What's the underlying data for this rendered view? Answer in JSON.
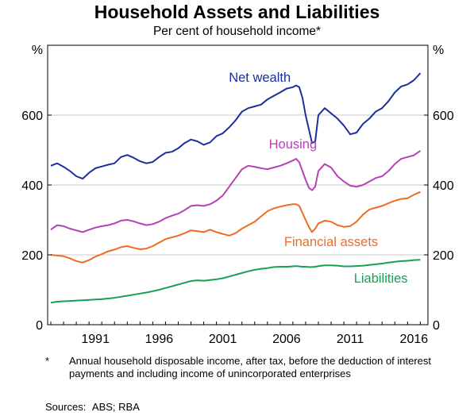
{
  "chart_data": {
    "type": "line",
    "title": "Household Assets and Liabilities",
    "subtitle": "Per cent of household income*",
    "y_unit_left": "%",
    "y_unit_right": "%",
    "ylim": [
      0,
      800
    ],
    "yticks": [
      0,
      200,
      400,
      600
    ],
    "xlim": [
      1987.75,
      2017.6
    ],
    "xticks": [
      1991,
      1996,
      2001,
      2006,
      2011,
      2016
    ],
    "grid": true,
    "series": [
      {
        "name": "Net wealth",
        "color": "#1c2f9c",
        "x": [
          1988.0,
          1988.5,
          1989.0,
          1989.5,
          1990.0,
          1990.5,
          1991.0,
          1991.5,
          1992.0,
          1992.5,
          1993.0,
          1993.5,
          1994.0,
          1994.5,
          1995.0,
          1995.5,
          1996.0,
          1996.5,
          1997.0,
          1997.5,
          1998.0,
          1998.5,
          1999.0,
          1999.5,
          2000.0,
          2000.5,
          2001.0,
          2001.5,
          2002.0,
          2002.5,
          2003.0,
          2003.5,
          2004.0,
          2004.5,
          2005.0,
          2005.5,
          2006.0,
          2006.5,
          2007.0,
          2007.25,
          2007.5,
          2007.75,
          2008.0,
          2008.25,
          2008.5,
          2008.75,
          2009.0,
          2009.5,
          2010.0,
          2010.5,
          2011.0,
          2011.5,
          2012.0,
          2012.5,
          2013.0,
          2013.5,
          2014.0,
          2014.5,
          2015.0,
          2015.5,
          2016.0,
          2016.5,
          2017.0
        ],
        "values": [
          455,
          462,
          452,
          440,
          425,
          418,
          435,
          448,
          453,
          458,
          462,
          480,
          486,
          478,
          468,
          462,
          466,
          480,
          492,
          495,
          505,
          520,
          530,
          525,
          515,
          522,
          540,
          548,
          565,
          585,
          610,
          620,
          625,
          630,
          645,
          655,
          665,
          676,
          680,
          685,
          680,
          650,
          600,
          560,
          520,
          525,
          600,
          620,
          605,
          590,
          570,
          545,
          550,
          575,
          590,
          610,
          620,
          640,
          665,
          682,
          688,
          700,
          720
        ]
      },
      {
        "name": "Housing",
        "color": "#b542b5",
        "x": [
          1988.0,
          1988.5,
          1989.0,
          1989.5,
          1990.0,
          1990.5,
          1991.0,
          1991.5,
          1992.0,
          1992.5,
          1993.0,
          1993.5,
          1994.0,
          1994.5,
          1995.0,
          1995.5,
          1996.0,
          1996.5,
          1997.0,
          1997.5,
          1998.0,
          1998.5,
          1999.0,
          1999.5,
          2000.0,
          2000.5,
          2001.0,
          2001.5,
          2002.0,
          2002.5,
          2003.0,
          2003.5,
          2004.0,
          2004.5,
          2005.0,
          2005.5,
          2006.0,
          2006.5,
          2007.0,
          2007.25,
          2007.5,
          2007.75,
          2008.0,
          2008.25,
          2008.5,
          2008.75,
          2009.0,
          2009.5,
          2010.0,
          2010.5,
          2011.0,
          2011.5,
          2012.0,
          2012.5,
          2013.0,
          2013.5,
          2014.0,
          2014.5,
          2015.0,
          2015.5,
          2016.0,
          2016.5,
          2017.0
        ],
        "values": [
          272,
          285,
          282,
          275,
          270,
          265,
          272,
          278,
          282,
          285,
          290,
          298,
          300,
          296,
          290,
          285,
          288,
          295,
          305,
          312,
          318,
          328,
          340,
          342,
          340,
          345,
          355,
          370,
          395,
          420,
          445,
          455,
          452,
          448,
          445,
          450,
          455,
          462,
          470,
          475,
          465,
          440,
          415,
          392,
          385,
          395,
          440,
          460,
          450,
          425,
          410,
          398,
          395,
          400,
          410,
          420,
          425,
          440,
          460,
          475,
          480,
          485,
          498
        ]
      },
      {
        "name": "Financial assets",
        "color": "#ef6c23",
        "x": [
          1988.0,
          1988.5,
          1989.0,
          1989.5,
          1990.0,
          1990.5,
          1991.0,
          1991.5,
          1992.0,
          1992.5,
          1993.0,
          1993.5,
          1994.0,
          1994.5,
          1995.0,
          1995.5,
          1996.0,
          1996.5,
          1997.0,
          1997.5,
          1998.0,
          1998.5,
          1999.0,
          1999.5,
          2000.0,
          2000.5,
          2001.0,
          2001.5,
          2002.0,
          2002.5,
          2003.0,
          2003.5,
          2004.0,
          2004.5,
          2005.0,
          2005.5,
          2006.0,
          2006.5,
          2007.0,
          2007.25,
          2007.5,
          2007.75,
          2008.0,
          2008.25,
          2008.5,
          2008.75,
          2009.0,
          2009.5,
          2010.0,
          2010.5,
          2011.0,
          2011.5,
          2012.0,
          2012.5,
          2013.0,
          2013.5,
          2014.0,
          2014.5,
          2015.0,
          2015.5,
          2016.0,
          2016.5,
          2017.0
        ],
        "values": [
          200,
          198,
          196,
          190,
          182,
          178,
          185,
          195,
          202,
          210,
          215,
          222,
          225,
          220,
          216,
          218,
          225,
          235,
          245,
          250,
          255,
          262,
          270,
          268,
          265,
          272,
          265,
          260,
          255,
          262,
          275,
          285,
          295,
          310,
          325,
          333,
          338,
          342,
          345,
          345,
          340,
          320,
          300,
          280,
          265,
          275,
          290,
          298,
          295,
          285,
          280,
          282,
          295,
          315,
          330,
          335,
          340,
          348,
          355,
          360,
          362,
          372,
          380
        ]
      },
      {
        "name": "Liabilities",
        "color": "#16a05a",
        "x": [
          1988.0,
          1988.5,
          1989.0,
          1989.5,
          1990.0,
          1990.5,
          1991.0,
          1991.5,
          1992.0,
          1992.5,
          1993.0,
          1993.5,
          1994.0,
          1994.5,
          1995.0,
          1995.5,
          1996.0,
          1996.5,
          1997.0,
          1997.5,
          1998.0,
          1998.5,
          1999.0,
          1999.5,
          2000.0,
          2000.5,
          2001.0,
          2001.5,
          2002.0,
          2002.5,
          2003.0,
          2003.5,
          2004.0,
          2004.5,
          2005.0,
          2005.5,
          2006.0,
          2006.5,
          2007.0,
          2007.25,
          2007.5,
          2007.75,
          2008.0,
          2008.25,
          2008.5,
          2008.75,
          2009.0,
          2009.5,
          2010.0,
          2010.5,
          2011.0,
          2011.5,
          2012.0,
          2012.5,
          2013.0,
          2013.5,
          2014.0,
          2014.5,
          2015.0,
          2015.5,
          2016.0,
          2016.5,
          2017.0
        ],
        "values": [
          63,
          66,
          67,
          68,
          69,
          70,
          71,
          72,
          73,
          75,
          77,
          80,
          83,
          86,
          89,
          92,
          96,
          100,
          105,
          110,
          115,
          120,
          125,
          127,
          126,
          128,
          130,
          133,
          138,
          143,
          148,
          153,
          157,
          160,
          162,
          165,
          166,
          166,
          167,
          168,
          167,
          166,
          166,
          165,
          165,
          166,
          168,
          170,
          170,
          169,
          167,
          167,
          168,
          169,
          171,
          173,
          175,
          178,
          180,
          182,
          183,
          185,
          186
        ]
      }
    ],
    "labels": {
      "net_wealth": "Net wealth",
      "housing": "Housing",
      "financial_assets": "Financial assets",
      "liabilities": "Liabilities"
    }
  },
  "notes": {
    "marker": "*",
    "text": "Annual household disposable income, after tax, before the deduction of interest payments and including income of unincorporated enterprises"
  },
  "sources": {
    "label": "Sources:",
    "text": "ABS; RBA"
  }
}
